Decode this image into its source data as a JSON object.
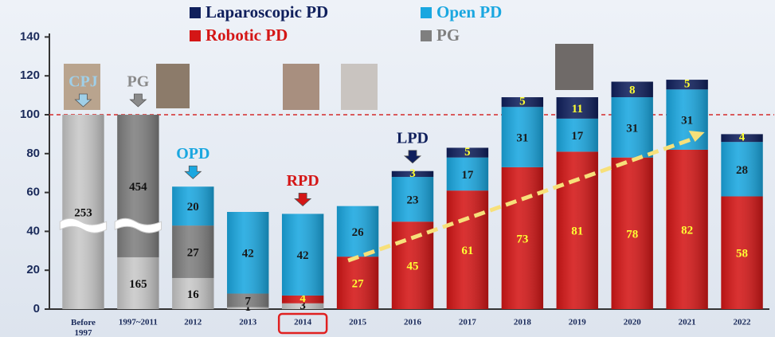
{
  "chart_data": {
    "type": "stacked_bar",
    "categories": [
      "Before 1997",
      "1997~2011",
      "2012",
      "2013",
      "2014",
      "2015",
      "2016",
      "2017",
      "2018",
      "2019",
      "2020",
      "2021",
      "2022"
    ],
    "series": [
      {
        "name": "Laparoscopic PD",
        "color": "#0f1f5c",
        "label_color": "#ffff33",
        "values": [
          null,
          null,
          null,
          null,
          null,
          null,
          3,
          5,
          5,
          11,
          8,
          5,
          4
        ]
      },
      {
        "name": "Open PD",
        "color": "#1aa7e0",
        "label_color": "#1a1a1a",
        "values": [
          null,
          null,
          20,
          42,
          42,
          26,
          23,
          17,
          31,
          17,
          31,
          31,
          28
        ]
      },
      {
        "name": "Robotic PD",
        "color": "#d41616",
        "label_color": "#ffff33",
        "values": [
          null,
          null,
          null,
          null,
          4,
          27,
          45,
          61,
          73,
          81,
          78,
          82,
          58
        ]
      },
      {
        "name": "PG",
        "color": "#7f7f7f",
        "label_color": "#111111",
        "values": [
          null,
          454,
          27,
          7,
          null,
          null,
          null,
          null,
          null,
          null,
          null,
          null,
          null
        ]
      },
      {
        "name": "CPJ",
        "color": "#c8c8c8",
        "label_color": "#111111",
        "in_legend": false,
        "values": [
          253,
          165,
          16,
          1,
          3,
          0,
          null,
          null,
          null,
          null,
          null,
          null,
          null
        ]
      }
    ],
    "ylim": [
      0,
      150
    ],
    "yticks": [
      0,
      20,
      40,
      60,
      80,
      100,
      120,
      140
    ],
    "reference_line": 100,
    "reference_color": "#d42a2a",
    "axis_break": true,
    "annotations": [
      {
        "text": "CPJ",
        "category": 0,
        "color": "#9fcfe8"
      },
      {
        "text": "PG",
        "category": 1,
        "color": "#8a8a8a"
      },
      {
        "text": "OPD",
        "category": 2,
        "color": "#1aa7e0"
      },
      {
        "text": "RPD",
        "category": 4,
        "color": "#d41616"
      },
      {
        "text": "LPD",
        "category": 6,
        "color": "#0f1f5c"
      }
    ],
    "highlight_category": 4,
    "highlight_color": "#e02020"
  }
}
